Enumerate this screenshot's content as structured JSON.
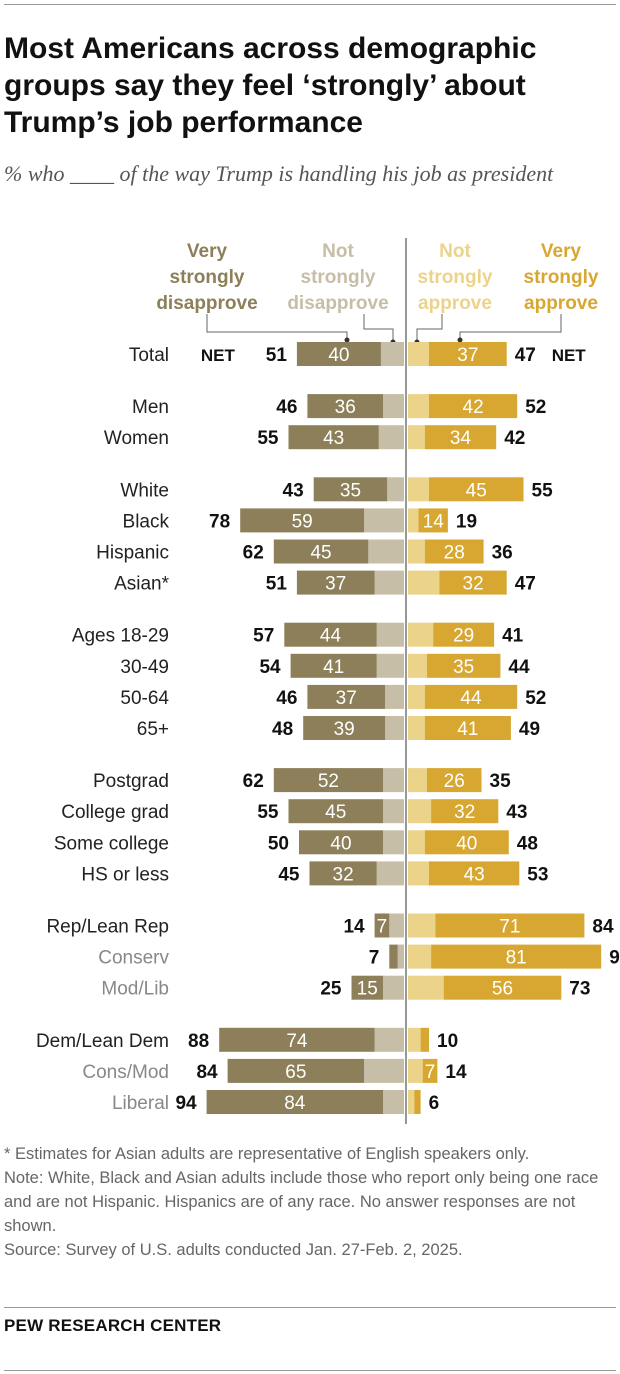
{
  "title": "Most Americans across demographic groups say they feel ‘strongly’ about Trump’s job performance",
  "subtitle": "% who ____ of the way Trump is handling his job as president",
  "legend": {
    "very_strongly_disapprove": [
      "Very",
      "strongly",
      "disapprove"
    ],
    "not_strongly_disapprove": [
      "Not",
      "strongly",
      "disapprove"
    ],
    "not_strongly_approve": [
      "Not",
      "strongly",
      "approve"
    ],
    "very_strongly_approve": [
      "Very",
      "strongly",
      "approve"
    ]
  },
  "net_label": "NET",
  "notes": {
    "asterisk": "* Estimates for Asian adults are representative of English speakers only.",
    "note": "Note: White, Black and Asian adults include those who report only being one race and are not Hispanic. Hispanics are of any race. No answer responses are not shown.",
    "source": "Source: Survey of U.S. adults conducted Jan. 27-Feb. 2, 2025."
  },
  "brand": "PEW RESEARCH CENTER",
  "colors": {
    "very_strongly_disapprove": "#8c7f59",
    "not_strongly_disapprove": "#c6bea6",
    "not_strongly_approve": "#ecd38a",
    "very_strongly_approve": "#d7a731",
    "divider": "#555555"
  },
  "chart_data": {
    "type": "bar",
    "orientation": "horizontal diverging stacked",
    "series": [
      {
        "name": "Very strongly disapprove",
        "key": "very_strongly_disapprove"
      },
      {
        "name": "Not strongly disapprove",
        "key": "not_strongly_disapprove"
      },
      {
        "name": "Not strongly approve",
        "key": "not_strongly_approve"
      },
      {
        "name": "Very strongly approve",
        "key": "very_strongly_approve"
      }
    ],
    "rows": [
      {
        "label": "Total",
        "sub": false,
        "group": 0,
        "vs_dis": 40,
        "net_dis": 51,
        "vs_app": 37,
        "net_app": 47
      },
      {
        "label": "Men",
        "sub": false,
        "group": 1,
        "vs_dis": 36,
        "net_dis": 46,
        "vs_app": 42,
        "net_app": 52
      },
      {
        "label": "Women",
        "sub": false,
        "group": 1,
        "vs_dis": 43,
        "net_dis": 55,
        "vs_app": 34,
        "net_app": 42
      },
      {
        "label": "White",
        "sub": false,
        "group": 2,
        "vs_dis": 35,
        "net_dis": 43,
        "vs_app": 45,
        "net_app": 55
      },
      {
        "label": "Black",
        "sub": false,
        "group": 2,
        "vs_dis": 59,
        "net_dis": 78,
        "vs_app": 14,
        "net_app": 19
      },
      {
        "label": "Hispanic",
        "sub": false,
        "group": 2,
        "vs_dis": 45,
        "net_dis": 62,
        "vs_app": 28,
        "net_app": 36
      },
      {
        "label": "Asian*",
        "sub": false,
        "group": 2,
        "vs_dis": 37,
        "net_dis": 51,
        "vs_app": 32,
        "net_app": 47
      },
      {
        "label": "Ages 18-29",
        "sub": false,
        "group": 3,
        "vs_dis": 44,
        "net_dis": 57,
        "vs_app": 29,
        "net_app": 41
      },
      {
        "label": "30-49",
        "sub": false,
        "group": 3,
        "vs_dis": 41,
        "net_dis": 54,
        "vs_app": 35,
        "net_app": 44
      },
      {
        "label": "50-64",
        "sub": false,
        "group": 3,
        "vs_dis": 37,
        "net_dis": 46,
        "vs_app": 44,
        "net_app": 52
      },
      {
        "label": "65+",
        "sub": false,
        "group": 3,
        "vs_dis": 39,
        "net_dis": 48,
        "vs_app": 41,
        "net_app": 49
      },
      {
        "label": "Postgrad",
        "sub": false,
        "group": 4,
        "vs_dis": 52,
        "net_dis": 62,
        "vs_app": 26,
        "net_app": 35
      },
      {
        "label": "College grad",
        "sub": false,
        "group": 4,
        "vs_dis": 45,
        "net_dis": 55,
        "vs_app": 32,
        "net_app": 43
      },
      {
        "label": "Some college",
        "sub": false,
        "group": 4,
        "vs_dis": 40,
        "net_dis": 50,
        "vs_app": 40,
        "net_app": 48
      },
      {
        "label": "HS or less",
        "sub": false,
        "group": 4,
        "vs_dis": 32,
        "net_dis": 45,
        "vs_app": 43,
        "net_app": 53
      },
      {
        "label": "Rep/Lean Rep",
        "sub": false,
        "group": 5,
        "vs_dis": 7,
        "net_dis": 14,
        "vs_app": 71,
        "net_app": 84
      },
      {
        "label": "Conserv",
        "sub": true,
        "group": 5,
        "vs_dis": 4,
        "net_dis": 7,
        "vs_app": 81,
        "net_app": 92,
        "hide_dis_label": true
      },
      {
        "label": "Mod/Lib",
        "sub": true,
        "group": 5,
        "vs_dis": 15,
        "net_dis": 25,
        "vs_app": 56,
        "net_app": 73
      },
      {
        "label": "Dem/Lean Dem",
        "sub": false,
        "group": 6,
        "vs_dis": 74,
        "net_dis": 88,
        "vs_app": 4,
        "net_app": 10,
        "hide_app_label": true
      },
      {
        "label": "Cons/Mod",
        "sub": true,
        "group": 6,
        "vs_dis": 65,
        "net_dis": 84,
        "vs_app": 7,
        "net_app": 14
      },
      {
        "label": "Liberal",
        "sub": true,
        "group": 6,
        "vs_dis": 84,
        "net_dis": 94,
        "vs_app": 3,
        "net_app": 6,
        "hide_app_label": true
      }
    ]
  }
}
